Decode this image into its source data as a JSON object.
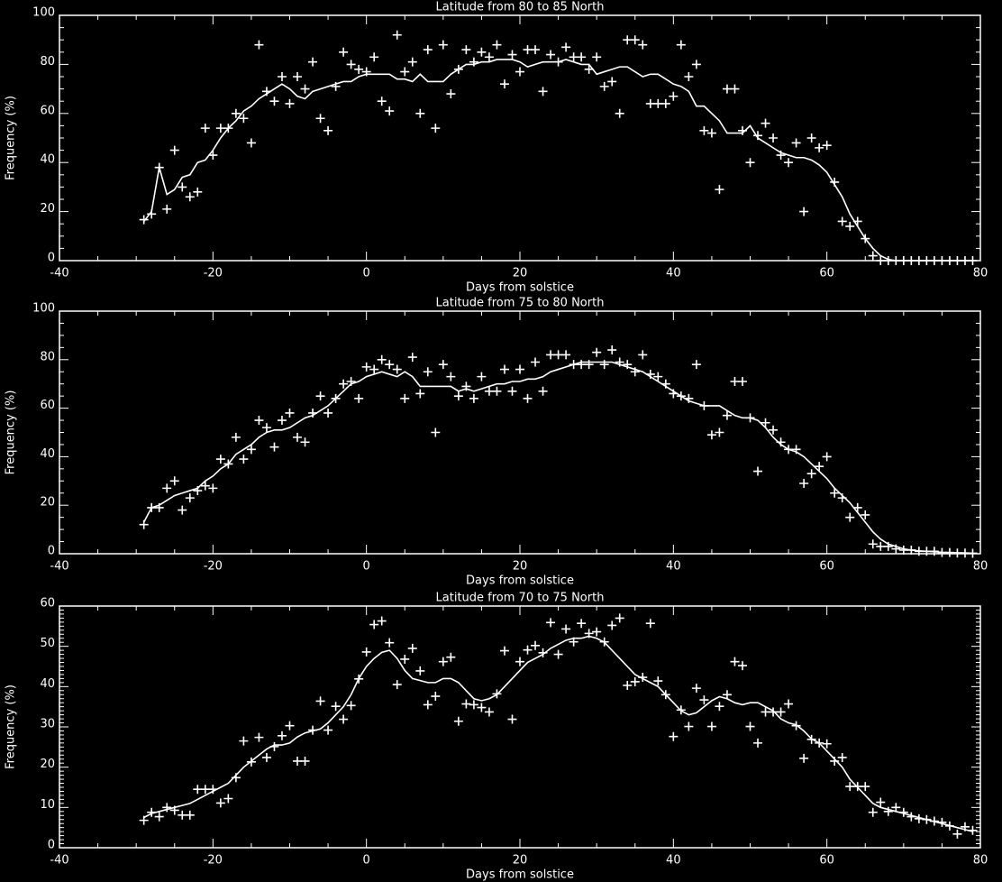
{
  "chart_data": [
    {
      "type": "line",
      "title": "Latitude from 80 to 85 North",
      "xlabel": "Days from solstice",
      "ylabel": "Frequency (%)",
      "x": [
        -29,
        -28,
        -27,
        -26,
        -25,
        -24,
        -23,
        -22,
        -21,
        -20,
        -19,
        -18,
        -17,
        -16,
        -15,
        -14,
        -13,
        -12,
        -11,
        -10,
        -9,
        -8,
        -7,
        -6,
        -5,
        -4,
        -3,
        -2,
        -1,
        0,
        1,
        2,
        3,
        4,
        5,
        6,
        7,
        8,
        9,
        10,
        11,
        12,
        13,
        14,
        15,
        16,
        17,
        18,
        19,
        20,
        21,
        22,
        23,
        24,
        25,
        26,
        27,
        28,
        29,
        30,
        31,
        32,
        33,
        34,
        35,
        36,
        37,
        38,
        39,
        40,
        41,
        42,
        43,
        44,
        45,
        46,
        47,
        48,
        49,
        50,
        51,
        52,
        53,
        54,
        55,
        56,
        57,
        58,
        59,
        60,
        61,
        62,
        63,
        64,
        65,
        66,
        67,
        68,
        69,
        70,
        71,
        72,
        73,
        74,
        75,
        76,
        77,
        78,
        79
      ],
      "series": [
        {
          "color": "#ffffff",
          "mode": "markers",
          "values": [
            16.7,
            19,
            38,
            21,
            45,
            30,
            26,
            28,
            54,
            43,
            54,
            54,
            60,
            58,
            48,
            88,
            69,
            65,
            75,
            64,
            75,
            70,
            81,
            58,
            53,
            71,
            85,
            80,
            78,
            77,
            83,
            65,
            61,
            92,
            77,
            81,
            60,
            86,
            54,
            88,
            68,
            78,
            86,
            81,
            85,
            83,
            88,
            72,
            84,
            77,
            86,
            86,
            69,
            84,
            81,
            87,
            83,
            83,
            78,
            83,
            71,
            73,
            60,
            90,
            90,
            88,
            64,
            64,
            64,
            67,
            88,
            75,
            80,
            53,
            52,
            29,
            70,
            70,
            53,
            40,
            51,
            56,
            50,
            43,
            40,
            48,
            20,
            50,
            46,
            47,
            32,
            16,
            14,
            16,
            9,
            2,
            0,
            0,
            0,
            0,
            0,
            0,
            0,
            0,
            0,
            0,
            0,
            0,
            0
          ]
        },
        {
          "color": "#ffffff",
          "mode": "lines",
          "values": [
            16,
            20,
            38,
            27,
            29,
            34,
            35,
            40,
            41,
            45,
            50,
            54,
            57,
            61,
            63,
            66,
            68,
            70,
            72,
            70,
            67,
            66,
            69,
            70,
            71,
            72,
            73,
            73,
            75,
            76,
            76,
            76,
            76,
            74,
            74,
            73,
            76,
            73,
            73,
            73,
            76,
            78,
            80,
            80,
            81,
            81,
            82,
            82,
            82,
            81,
            79,
            80,
            81,
            81,
            81,
            82,
            81,
            80,
            80,
            76,
            77,
            78,
            79,
            79,
            77,
            75,
            76,
            76,
            74,
            72,
            71,
            69,
            63,
            63,
            60,
            57,
            52,
            52,
            52,
            55,
            50,
            48,
            46,
            44,
            43,
            42,
            42,
            41,
            39,
            36,
            31,
            26,
            19,
            14,
            9,
            5,
            2,
            0.5,
            0,
            0,
            0,
            0,
            0,
            0,
            0,
            0,
            0,
            0,
            0
          ]
        }
      ],
      "xlim": [
        -40,
        80
      ],
      "xticks": [
        -40,
        -20,
        0,
        20,
        40,
        60,
        80
      ],
      "x_minor": 4,
      "ylim": [
        0,
        100
      ],
      "yticks": [
        0,
        20,
        40,
        60,
        80,
        100
      ],
      "y_minor": 4,
      "background": "#000000",
      "axis_color": "#ffffff"
    },
    {
      "type": "line",
      "title": "Latitude from 75 to 80 North",
      "xlabel": "Days from solstice",
      "ylabel": "Frequency (%)",
      "x": [
        -29,
        -28,
        -27,
        -26,
        -25,
        -24,
        -23,
        -22,
        -21,
        -20,
        -19,
        -18,
        -17,
        -16,
        -15,
        -14,
        -13,
        -12,
        -11,
        -10,
        -9,
        -8,
        -7,
        -6,
        -5,
        -4,
        -3,
        -2,
        -1,
        0,
        1,
        2,
        3,
        4,
        5,
        6,
        7,
        8,
        9,
        10,
        11,
        12,
        13,
        14,
        15,
        16,
        17,
        18,
        19,
        20,
        21,
        22,
        23,
        24,
        25,
        26,
        27,
        28,
        29,
        30,
        31,
        32,
        33,
        34,
        35,
        36,
        37,
        38,
        39,
        40,
        41,
        42,
        43,
        44,
        45,
        46,
        47,
        48,
        49,
        50,
        51,
        52,
        53,
        54,
        55,
        56,
        57,
        58,
        59,
        60,
        61,
        62,
        63,
        64,
        65,
        66,
        67,
        68,
        69,
        70,
        71,
        72,
        73,
        74,
        75,
        76,
        77,
        78,
        79
      ],
      "series": [
        {
          "color": "#ffffff",
          "mode": "markers",
          "values": [
            12,
            19,
            19,
            27,
            30,
            18,
            23,
            26,
            28,
            27,
            39,
            37,
            48,
            39,
            43,
            55,
            52,
            44,
            55,
            58,
            48,
            46,
            58,
            65,
            58,
            64,
            70,
            71,
            64,
            77,
            76,
            80,
            78,
            76,
            64,
            81,
            66,
            75,
            50,
            78,
            73,
            65,
            69,
            64,
            73,
            67,
            67,
            76,
            67,
            76,
            64,
            79,
            67,
            82,
            82,
            82,
            78,
            78,
            78,
            83,
            78,
            84,
            79,
            78,
            75,
            82,
            74,
            73,
            70,
            66,
            65,
            64,
            78,
            61,
            49,
            50,
            57,
            71,
            71,
            56,
            34,
            54,
            51,
            46,
            43,
            43,
            29,
            33,
            36,
            40,
            25,
            23,
            15,
            19,
            16,
            4,
            3,
            3,
            2,
            1.5,
            1.5,
            1,
            1,
            1,
            0.5,
            0.5,
            0.3,
            0.3,
            0.2
          ]
        },
        {
          "color": "#ffffff",
          "mode": "lines",
          "values": [
            13,
            19,
            20,
            22,
            24,
            25,
            26,
            27,
            30,
            32,
            35,
            37,
            41,
            43,
            45,
            48,
            50,
            51,
            51,
            52,
            54,
            56,
            57,
            59,
            61,
            64,
            67,
            70,
            71,
            73,
            74,
            75,
            74,
            73,
            75,
            73,
            69,
            69,
            69,
            69,
            69,
            67,
            68,
            67,
            68,
            69,
            70,
            70,
            71,
            71,
            72,
            72,
            73,
            75,
            76,
            77,
            78,
            79,
            79,
            79,
            79,
            79,
            78,
            77,
            76,
            75,
            73,
            71,
            69,
            67,
            65,
            63,
            62,
            61,
            61,
            61,
            59,
            57,
            56,
            56,
            55,
            52,
            48,
            45,
            43,
            42,
            40,
            37,
            34,
            31,
            27,
            24,
            21,
            17,
            13,
            9,
            6,
            4,
            3,
            2,
            1.5,
            1.2,
            1,
            0.8,
            0.6,
            0.5,
            0.4,
            0.3,
            0.2
          ]
        }
      ],
      "xlim": [
        -40,
        80
      ],
      "xticks": [
        -40,
        -20,
        0,
        20,
        40,
        60,
        80
      ],
      "x_minor": 4,
      "ylim": [
        0,
        100
      ],
      "yticks": [
        0,
        20,
        40,
        60,
        80,
        100
      ],
      "y_minor": 4,
      "background": "#000000",
      "axis_color": "#ffffff"
    },
    {
      "type": "line",
      "title": "Latitude from 70 to 75 North",
      "xlabel": "Days from solstice",
      "ylabel": "Frequency (%)",
      "x": [
        -29,
        -28,
        -27,
        -26,
        -25,
        -24,
        -23,
        -22,
        -21,
        -20,
        -19,
        -18,
        -17,
        -16,
        -15,
        -14,
        -13,
        -12,
        -11,
        -10,
        -9,
        -8,
        -7,
        -6,
        -5,
        -4,
        -3,
        -2,
        -1,
        0,
        1,
        2,
        3,
        4,
        5,
        6,
        7,
        8,
        9,
        10,
        11,
        12,
        13,
        14,
        15,
        16,
        17,
        18,
        19,
        20,
        21,
        22,
        23,
        24,
        25,
        26,
        27,
        28,
        29,
        30,
        31,
        32,
        33,
        34,
        35,
        36,
        37,
        38,
        39,
        40,
        41,
        42,
        43,
        44,
        45,
        46,
        47,
        48,
        49,
        50,
        51,
        52,
        53,
        54,
        55,
        56,
        57,
        58,
        59,
        60,
        61,
        62,
        63,
        64,
        65,
        66,
        67,
        68,
        69,
        70,
        71,
        72,
        73,
        74,
        75,
        76,
        77,
        78,
        79
      ],
      "series": [
        {
          "color": "#ffffff",
          "mode": "markers",
          "values": [
            6.8,
            8.8,
            7.7,
            10,
            9.3,
            8.1,
            8.1,
            14.5,
            14.5,
            14.5,
            11.1,
            12.2,
            17.4,
            26.5,
            21.3,
            27.4,
            22.4,
            25.1,
            27.8,
            30.3,
            21.5,
            21.5,
            29.2,
            36.4,
            29.2,
            35.1,
            31.9,
            35.3,
            41.9,
            48.6,
            55.4,
            56.3,
            50.9,
            40.5,
            46.8,
            49.5,
            43.9,
            35.5,
            37.6,
            46.2,
            47.3,
            31.4,
            35.7,
            35.5,
            34.8,
            33.7,
            38.2,
            48.9,
            31.9,
            46.2,
            49.1,
            50.2,
            48.4,
            55.9,
            48,
            54.3,
            51.1,
            55.7,
            53.2,
            53.6,
            51.1,
            55.2,
            57,
            40.3,
            41.2,
            42.3,
            55.7,
            41.4,
            38,
            27.6,
            34.2,
            30.1,
            39.6,
            36.7,
            30.1,
            35.1,
            38,
            46.2,
            45.2,
            30.1,
            26,
            33.7,
            33.7,
            33.7,
            35.7,
            30.3,
            22.2,
            26.9,
            26,
            25.8,
            21.5,
            22.4,
            15.2,
            15.2,
            15.2,
            8.8,
            11.3,
            9,
            10,
            8.8,
            7.7,
            7.2,
            7,
            6.6,
            6.3,
            5.4,
            3.4,
            5.2,
            4.3
          ]
        },
        {
          "color": "#ffffff",
          "mode": "lines",
          "values": [
            7.5,
            8.5,
            9,
            9.5,
            10,
            10.5,
            11,
            12,
            13,
            14,
            15,
            16,
            18,
            20,
            21.5,
            23,
            24.5,
            25.5,
            25.5,
            26,
            27.5,
            28.5,
            29,
            29.5,
            31,
            33,
            35,
            38,
            42,
            45,
            47,
            48.5,
            49,
            47,
            44,
            42,
            41.5,
            41,
            41,
            42,
            42,
            41,
            39,
            37,
            36.5,
            37,
            38,
            40,
            42,
            44,
            46,
            47,
            48,
            49.5,
            50.5,
            51.5,
            52,
            52,
            52.5,
            52,
            51,
            49,
            47,
            45,
            43,
            42,
            41,
            40,
            38,
            36,
            34,
            33,
            33.5,
            35,
            36.5,
            37.5,
            37,
            36,
            35.5,
            36,
            36,
            35,
            34,
            32,
            31,
            30.5,
            29,
            27,
            26,
            24,
            22,
            20,
            17,
            15,
            13,
            11,
            10,
            9.5,
            9,
            8.5,
            8,
            7.5,
            7,
            6.5,
            6,
            5.5,
            5,
            4.5,
            4
          ]
        }
      ],
      "xlim": [
        -40,
        80
      ],
      "xticks": [
        -40,
        -20,
        0,
        20,
        40,
        60,
        80
      ],
      "x_minor": 4,
      "ylim": [
        0,
        60
      ],
      "yticks": [
        0,
        10,
        20,
        30,
        40,
        50,
        60
      ],
      "y_minor": 10,
      "background": "#000000",
      "axis_color": "#ffffff"
    }
  ]
}
